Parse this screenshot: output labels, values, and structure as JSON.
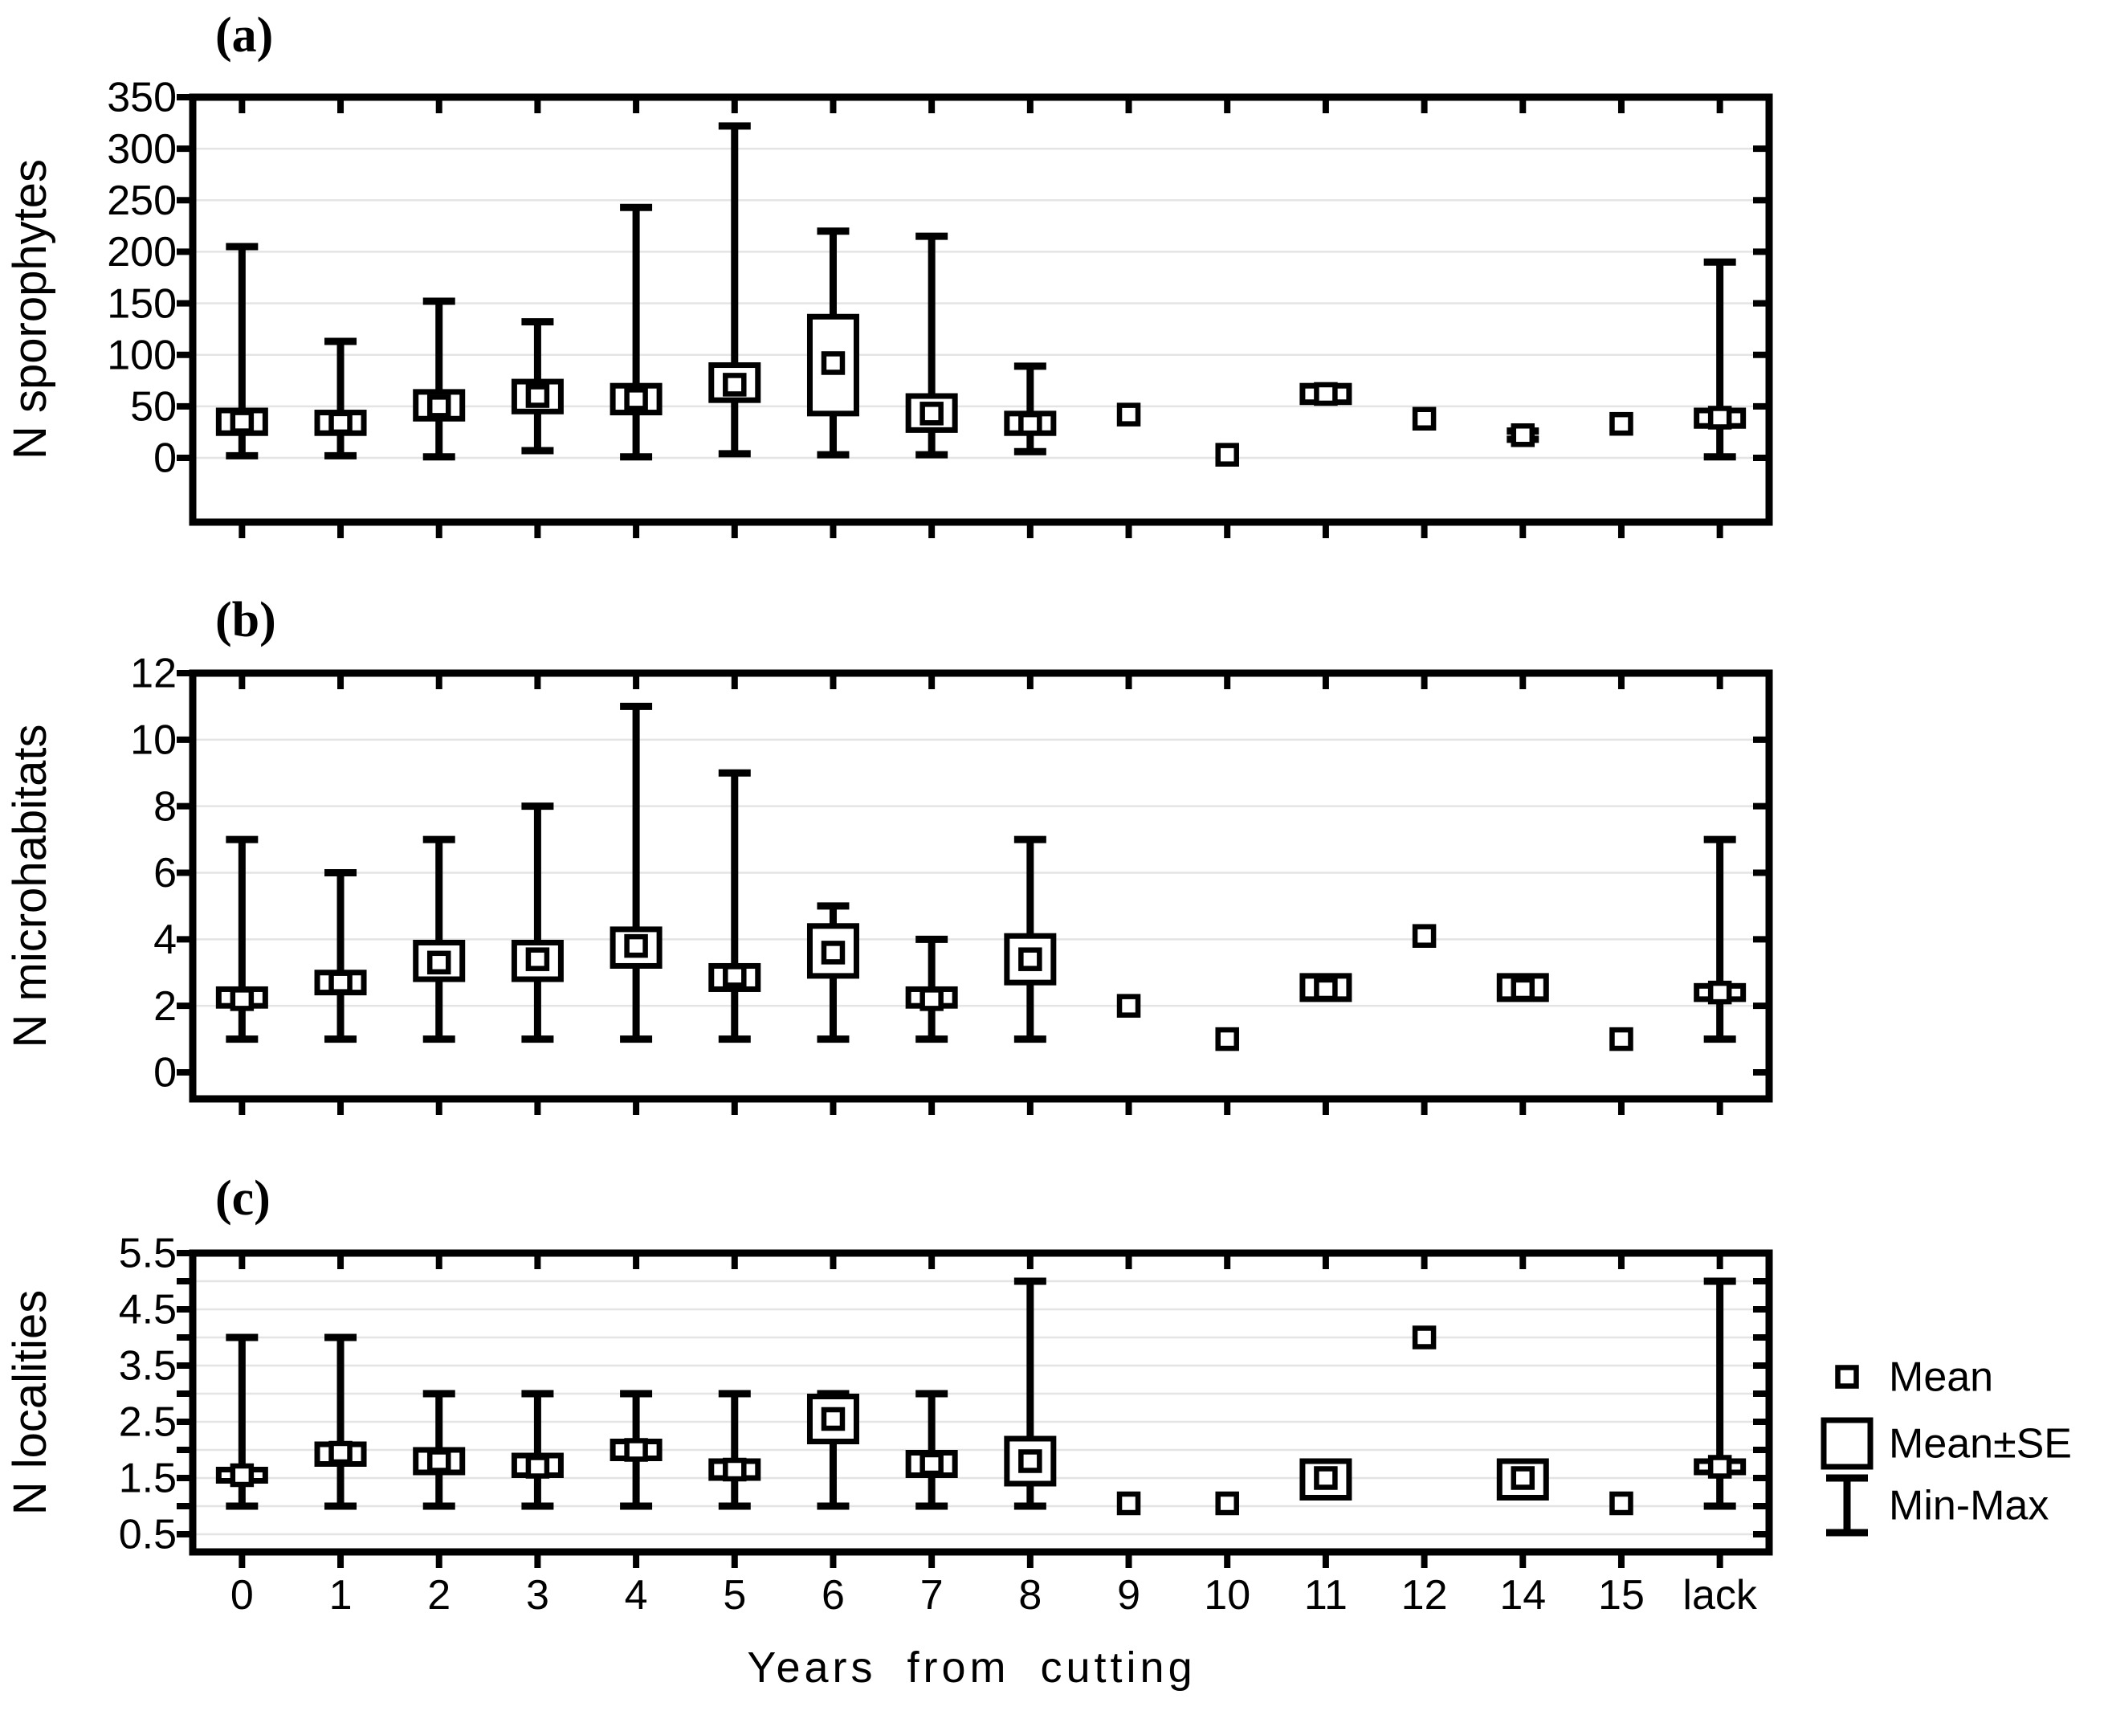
{
  "figure": {
    "xlabel": "Years from cutting",
    "categories": [
      "0",
      "1",
      "2",
      "3",
      "4",
      "5",
      "6",
      "7",
      "8",
      "9",
      "10",
      "11",
      "12",
      "14",
      "15",
      "lack"
    ],
    "colors": {
      "ink": "#000000",
      "gridline": "#e4e4e4",
      "background": "#ffffff"
    },
    "legend": [
      {
        "symbol": "mean-square",
        "label": "Mean"
      },
      {
        "symbol": "mean-se-box",
        "label": "Mean±SE"
      },
      {
        "symbol": "min-max-whisker",
        "label": "Min-Max"
      }
    ]
  },
  "chart_data": [
    {
      "type": "box",
      "panel_letter": "(a)",
      "ylabel": "N sporophytes",
      "ylim": [
        0,
        350
      ],
      "yticks_labeled": [
        0,
        50,
        100,
        150,
        200,
        250,
        300,
        350
      ],
      "yticks_minor": [],
      "gridlines": [
        0,
        50,
        100,
        150,
        200,
        250,
        300
      ],
      "grid": true,
      "legend_position": "outside-right-bottom",
      "categories": [
        "0",
        "1",
        "2",
        "3",
        "4",
        "5",
        "6",
        "7",
        "8",
        "9",
        "10",
        "11",
        "12",
        "14",
        "15",
        "lack"
      ],
      "series": {
        "mean": [
          35,
          34,
          50,
          60,
          57,
          71,
          92,
          43,
          33,
          42,
          3,
          62,
          38,
          22,
          33,
          39
        ],
        "mean_se": [
          [
            24,
            46
          ],
          [
            24,
            44
          ],
          [
            38,
            64
          ],
          [
            45,
            74
          ],
          [
            44,
            70
          ],
          [
            56,
            90
          ],
          [
            43,
            137
          ],
          [
            27,
            60
          ],
          [
            24,
            43
          ],
          null,
          null,
          [
            54,
            70
          ],
          null,
          null,
          null,
          [
            31,
            46
          ]
        ],
        "min_max": [
          [
            2,
            205
          ],
          [
            2,
            113
          ],
          [
            1,
            152
          ],
          [
            7,
            132
          ],
          [
            1,
            243
          ],
          [
            4,
            322
          ],
          [
            3,
            220
          ],
          [
            3,
            215
          ],
          [
            6,
            89
          ],
          null,
          null,
          null,
          null,
          [
            18,
            26
          ],
          null,
          [
            1,
            190
          ]
        ]
      }
    },
    {
      "type": "box",
      "panel_letter": "(b)",
      "ylabel": "N microhabitats",
      "ylim": [
        0,
        12
      ],
      "yticks_labeled": [
        0,
        2,
        4,
        6,
        8,
        10,
        12
      ],
      "yticks_minor": [],
      "gridlines": [
        2,
        4,
        6,
        8,
        10
      ],
      "grid": true,
      "categories": [
        "0",
        "1",
        "2",
        "3",
        "4",
        "5",
        "6",
        "7",
        "8",
        "9",
        "10",
        "11",
        "12",
        "14",
        "15",
        "lack"
      ],
      "series": {
        "mean": [
          2.2,
          2.7,
          3.3,
          3.4,
          3.8,
          2.9,
          3.6,
          2.2,
          3.4,
          2.0,
          1.0,
          2.5,
          4.1,
          2.5,
          1.0,
          2.4
        ],
        "mean_se": [
          [
            2.0,
            2.5
          ],
          [
            2.4,
            3.0
          ],
          [
            2.8,
            3.9
          ],
          [
            2.8,
            3.9
          ],
          [
            3.2,
            4.3
          ],
          [
            2.5,
            3.2
          ],
          [
            2.9,
            4.4
          ],
          [
            2.0,
            2.5
          ],
          [
            2.7,
            4.1
          ],
          null,
          null,
          [
            2.2,
            2.9
          ],
          null,
          [
            2.2,
            2.9
          ],
          null,
          [
            2.2,
            2.6
          ]
        ],
        "min_max": [
          [
            1,
            7
          ],
          [
            1,
            6
          ],
          [
            1,
            7
          ],
          [
            1,
            8
          ],
          [
            1,
            11
          ],
          [
            1,
            9
          ],
          [
            1,
            5
          ],
          [
            1,
            4
          ],
          [
            1,
            7
          ],
          null,
          null,
          null,
          null,
          null,
          null,
          [
            1,
            7
          ]
        ]
      }
    },
    {
      "type": "box",
      "panel_letter": "(c)",
      "ylabel": "N localities",
      "ylim": [
        0.5,
        5.5
      ],
      "yticks_labeled": [
        0.5,
        1.5,
        2.5,
        3.5,
        4.5,
        5.5
      ],
      "yticks_minor": [
        1.0,
        2.0,
        3.0,
        4.0,
        5.0
      ],
      "gridlines": [
        0.5,
        1.0,
        1.5,
        2.0,
        2.5,
        3.0,
        3.5,
        4.0,
        4.5,
        5.0
      ],
      "grid": true,
      "categories": [
        "0",
        "1",
        "2",
        "3",
        "4",
        "5",
        "6",
        "7",
        "8",
        "9",
        "10",
        "11",
        "12",
        "14",
        "15",
        "lack"
      ],
      "series": {
        "mean": [
          1.55,
          1.95,
          1.8,
          1.7,
          2.0,
          1.65,
          2.55,
          1.75,
          1.8,
          1.05,
          1.05,
          1.5,
          4.0,
          1.5,
          1.05,
          1.7
        ],
        "mean_se": [
          [
            1.45,
            1.65
          ],
          [
            1.75,
            2.1
          ],
          [
            1.6,
            2.0
          ],
          [
            1.55,
            1.9
          ],
          [
            1.85,
            2.15
          ],
          [
            1.5,
            1.8
          ],
          [
            2.15,
            2.95
          ],
          [
            1.55,
            1.95
          ],
          [
            1.4,
            2.2
          ],
          null,
          null,
          [
            1.15,
            1.8
          ],
          null,
          [
            1.15,
            1.8
          ],
          null,
          [
            1.6,
            1.8
          ]
        ],
        "min_max": [
          [
            1,
            4
          ],
          [
            1,
            4
          ],
          [
            1,
            3
          ],
          [
            1,
            3
          ],
          [
            1,
            3
          ],
          [
            1,
            3
          ],
          [
            1,
            3
          ],
          [
            1,
            3
          ],
          [
            1,
            5
          ],
          null,
          null,
          null,
          null,
          null,
          null,
          [
            1,
            5
          ]
        ]
      }
    }
  ]
}
